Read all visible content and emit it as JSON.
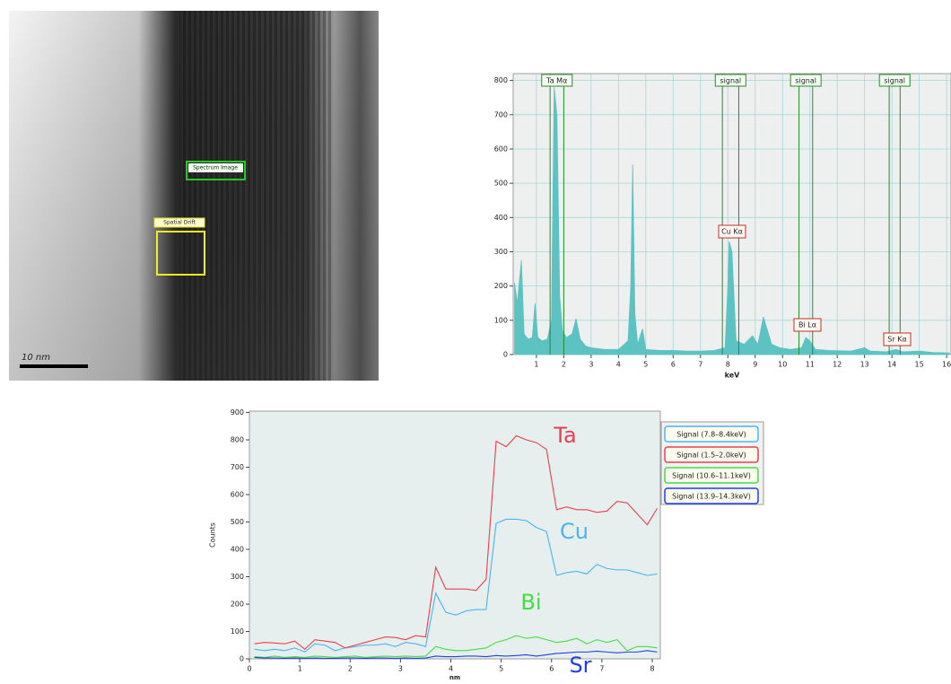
{
  "image": {
    "scale_bar": "10 nm",
    "regions": [
      "Spectrum Image",
      "Spatial Drift"
    ]
  },
  "chart_data": [
    {
      "type": "area",
      "x_label": "keV",
      "color": "#5cc2c2",
      "grid": true,
      "xlim": [
        0.15,
        16.16
      ],
      "ylim": [
        0,
        820
      ],
      "xticks": [
        1,
        2,
        3,
        4,
        5,
        6,
        7,
        8,
        9,
        10,
        11,
        12,
        13,
        14,
        15,
        16
      ],
      "yticks": [
        0,
        100,
        200,
        300,
        400,
        500,
        600,
        700,
        800
      ],
      "x": [
        0.2,
        0.3,
        0.45,
        0.55,
        0.7,
        0.85,
        0.95,
        1.05,
        1.2,
        1.4,
        1.55,
        1.65,
        1.75,
        1.85,
        1.95,
        2.1,
        2.3,
        2.45,
        2.6,
        2.8,
        3.0,
        3.5,
        4.0,
        4.35,
        4.45,
        4.52,
        4.6,
        4.7,
        4.88,
        5.0,
        5.5,
        6.0,
        6.5,
        7.0,
        7.5,
        7.9,
        8.0,
        8.05,
        8.15,
        8.3,
        8.6,
        8.9,
        9.1,
        9.3,
        9.45,
        9.6,
        9.9,
        10.3,
        10.7,
        10.85,
        11.0,
        11.2,
        11.7,
        12.5,
        13.0,
        13.2,
        13.8,
        14.15,
        14.4,
        15.0,
        15.5,
        16.1
      ],
      "values": [
        210,
        150,
        275,
        60,
        45,
        50,
        150,
        50,
        40,
        45,
        100,
        780,
        700,
        170,
        70,
        50,
        60,
        105,
        45,
        25,
        20,
        15,
        15,
        40,
        200,
        555,
        120,
        30,
        75,
        15,
        12,
        12,
        10,
        10,
        12,
        20,
        200,
        330,
        300,
        40,
        30,
        55,
        30,
        110,
        70,
        30,
        20,
        15,
        20,
        50,
        40,
        15,
        12,
        10,
        20,
        10,
        8,
        15,
        8,
        10,
        6,
        5
      ],
      "windows": [
        {
          "label": "Ta Mα",
          "range": [
            1.5,
            2.0
          ]
        },
        {
          "label": "signal",
          "range": [
            7.8,
            8.4
          ]
        },
        {
          "label": "signal",
          "range": [
            10.6,
            11.1
          ]
        },
        {
          "label": "signal",
          "range": [
            13.9,
            14.3
          ]
        }
      ],
      "peak_labels": [
        "Cu Kα",
        "Bi Lα",
        "Sr Kα"
      ]
    },
    {
      "type": "line",
      "x_label": "nm",
      "y_label": "Counts",
      "legend": "outside-right",
      "xlim": [
        0,
        8.16
      ],
      "ylim": [
        0,
        905
      ],
      "xticks": [
        0,
        1,
        2,
        3,
        4,
        5,
        6,
        7,
        8
      ],
      "yticks": [
        0,
        100,
        200,
        300,
        400,
        500,
        600,
        700,
        800,
        900
      ],
      "x": [
        0.1,
        0.3,
        0.5,
        0.7,
        0.9,
        1.1,
        1.3,
        1.5,
        1.7,
        1.9,
        2.1,
        2.3,
        2.5,
        2.7,
        2.9,
        3.1,
        3.3,
        3.5,
        3.7,
        3.9,
        4.1,
        4.3,
        4.5,
        4.7,
        4.9,
        5.1,
        5.3,
        5.5,
        5.7,
        5.9,
        6.1,
        6.3,
        6.5,
        6.7,
        6.9,
        7.1,
        7.3,
        7.5,
        7.7,
        7.9,
        8.1
      ],
      "series": [
        {
          "name": "Signal (7.8–8.4keV)",
          "color": "#4ab4f0",
          "values": [
            35,
            30,
            35,
            30,
            40,
            25,
            55,
            50,
            30,
            40,
            45,
            50,
            50,
            55,
            45,
            60,
            55,
            45,
            240,
            170,
            160,
            175,
            180,
            180,
            495,
            510,
            510,
            505,
            480,
            465,
            305,
            315,
            320,
            310,
            345,
            330,
            325,
            325,
            315,
            305,
            310
          ]
        },
        {
          "name": "Signal (1.5–2.0keV)",
          "color": "#e8404f",
          "values": [
            55,
            60,
            58,
            55,
            65,
            35,
            70,
            65,
            60,
            40,
            50,
            60,
            70,
            80,
            78,
            70,
            85,
            80,
            335,
            255,
            255,
            255,
            250,
            290,
            795,
            775,
            815,
            800,
            790,
            765,
            545,
            555,
            545,
            545,
            535,
            540,
            575,
            570,
            530,
            490,
            550
          ]
        },
        {
          "name": "Signal (10.6–11.1keV)",
          "color": "#44dd44",
          "values": [
            8,
            5,
            10,
            5,
            8,
            5,
            10,
            8,
            5,
            8,
            10,
            5,
            8,
            10,
            8,
            10,
            8,
            10,
            45,
            35,
            30,
            30,
            35,
            40,
            60,
            70,
            85,
            75,
            80,
            70,
            60,
            65,
            75,
            55,
            70,
            60,
            70,
            30,
            45,
            45,
            40
          ]
        },
        {
          "name": "Signal (13.9–14.3keV)",
          "color": "#2040e0",
          "values": [
            5,
            3,
            3,
            2,
            3,
            2,
            3,
            2,
            2,
            3,
            3,
            2,
            3,
            3,
            2,
            3,
            2,
            3,
            10,
            8,
            8,
            10,
            10,
            8,
            12,
            10,
            12,
            15,
            10,
            15,
            20,
            22,
            25,
            25,
            28,
            25,
            22,
            25,
            25,
            30,
            25
          ]
        }
      ],
      "annotations": [
        {
          "text": "Ta",
          "color": "#e8404f"
        },
        {
          "text": "Cu",
          "color": "#4ab4f0"
        },
        {
          "text": "Bi",
          "color": "#44dd44"
        },
        {
          "text": "Sr",
          "color": "#2040e0"
        }
      ]
    }
  ]
}
